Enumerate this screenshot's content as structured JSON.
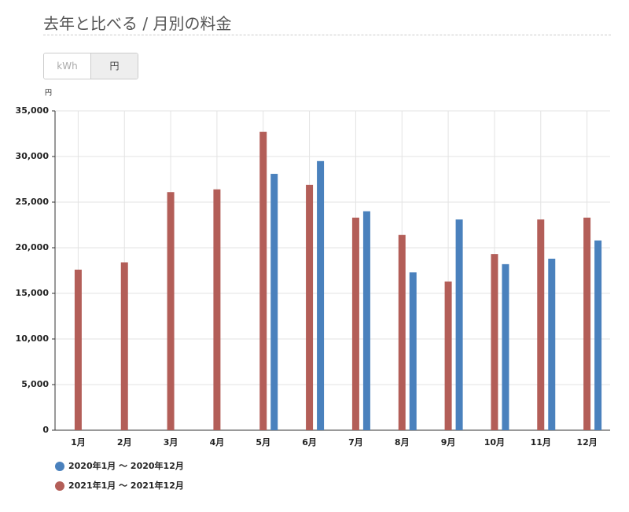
{
  "header": {
    "title": "去年と比べる / 月別の料金",
    "toggle": [
      "kWh",
      "円"
    ]
  },
  "chart_data": {
    "type": "bar",
    "y_label": "円",
    "categories": [
      "1月",
      "2月",
      "3月",
      "4月",
      "5月",
      "6月",
      "7月",
      "8月",
      "9月",
      "10月",
      "11月",
      "12月"
    ],
    "series": [
      {
        "name": "2020年1月 〜 2020年12月",
        "color": "#4a81bd",
        "values": [
          null,
          null,
          null,
          null,
          28100,
          29500,
          24000,
          17300,
          23100,
          18200,
          18800,
          20800
        ]
      },
      {
        "name": "2021年1月 〜 2021年12月",
        "color": "#b35e58",
        "values": [
          17600,
          18400,
          26100,
          26400,
          32700,
          26900,
          23300,
          21400,
          16300,
          19300,
          23100,
          23300
        ]
      }
    ],
    "ylim": [
      0,
      35000
    ],
    "yticks": [
      0,
      {
        "value": 5000,
        "label": "5,000"
      },
      {
        "value": 10000,
        "label": "10,000"
      },
      {
        "value": 15000,
        "label": "15,000"
      },
      {
        "value": 20000,
        "label": "20,000"
      },
      {
        "value": 25000,
        "label": "25,000"
      },
      {
        "value": 30000,
        "label": "30,000"
      },
      {
        "value": 35000,
        "label": "35,000"
      }
    ],
    "grid": true
  }
}
